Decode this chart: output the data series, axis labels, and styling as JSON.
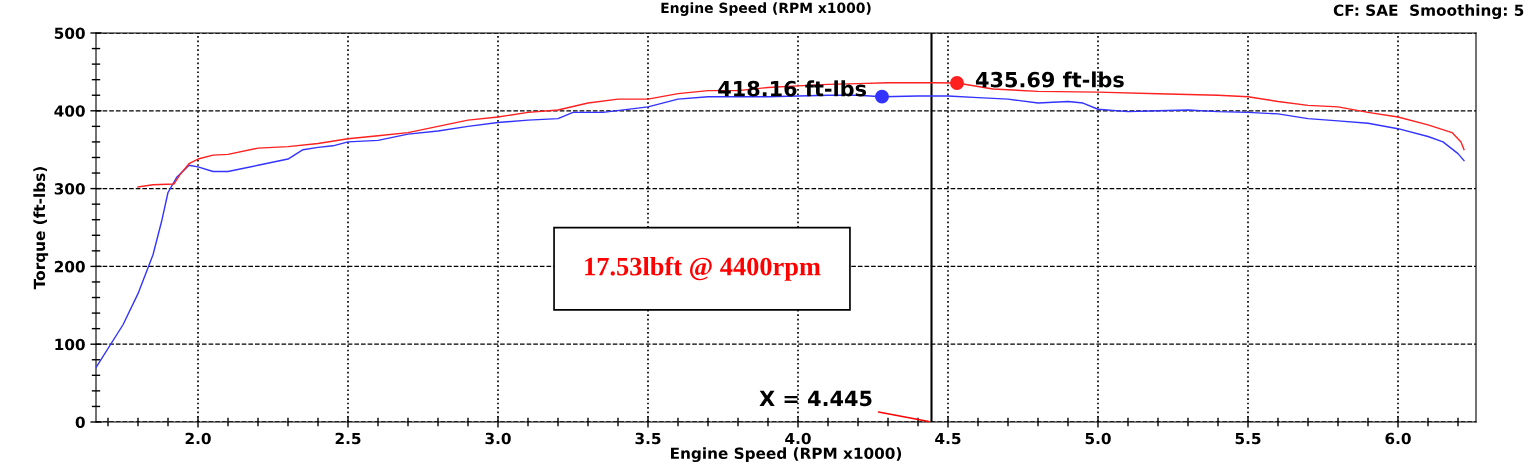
{
  "chart_data": {
    "type": "line",
    "title": "Engine Speed (RPM x1000)",
    "xlabel": "Engine Speed (RPM x1000)",
    "ylabel": "Torque (ft-lbs)",
    "xlim": [
      1.66,
      6.26
    ],
    "xticks": [
      {
        "value": 2.0,
        "label": "2.0"
      },
      {
        "value": 2.5,
        "label": "2.5"
      },
      {
        "value": 3.0,
        "label": "3.0"
      },
      {
        "value": 3.5,
        "label": "3.5"
      },
      {
        "value": 4.0,
        "label": "4.0"
      },
      {
        "value": 4.5,
        "label": "4.5"
      },
      {
        "value": 5.0,
        "label": "5.0"
      },
      {
        "value": 5.5,
        "label": "5.5"
      },
      {
        "value": 6.0,
        "label": "6.0"
      }
    ],
    "ylim": [
      0,
      500
    ],
    "yticks": [
      0,
      100,
      200,
      300,
      400,
      500
    ],
    "grid": true,
    "line_style": "solid",
    "marker": "none",
    "series": [
      {
        "color": "#3333ff",
        "x": [
          1.66,
          1.75,
          1.8,
          1.85,
          1.88,
          1.9,
          1.93,
          1.97,
          2.0,
          2.05,
          2.1,
          2.2,
          2.3,
          2.35,
          2.4,
          2.45,
          2.5,
          2.6,
          2.7,
          2.8,
          2.9,
          3.0,
          3.1,
          3.2,
          3.25,
          3.35,
          3.5,
          3.6,
          3.7,
          3.8,
          3.9,
          4.0,
          4.1,
          4.2,
          4.28,
          4.4,
          4.5,
          4.6,
          4.7,
          4.8,
          4.9,
          4.95,
          5.0,
          5.1,
          5.2,
          5.3,
          5.4,
          5.5,
          5.6,
          5.7,
          5.8,
          5.9,
          6.0,
          6.1,
          6.15,
          6.2,
          6.22
        ],
        "values": [
          70,
          125,
          165,
          215,
          260,
          295,
          315,
          330,
          328,
          322,
          322,
          330,
          338,
          350,
          353,
          355,
          360,
          362,
          370,
          374,
          380,
          385,
          388,
          390,
          398,
          398,
          405,
          415,
          418,
          418,
          418,
          419,
          420,
          420,
          418,
          419,
          419,
          417,
          415,
          410,
          412,
          410,
          402,
          399,
          400,
          401,
          399,
          398,
          396,
          390,
          387,
          384,
          377,
          367,
          360,
          345,
          336
        ]
      },
      {
        "color": "#ff2020",
        "x": [
          1.8,
          1.85,
          1.92,
          1.94,
          1.97,
          2.0,
          2.05,
          2.1,
          2.2,
          2.3,
          2.4,
          2.5,
          2.6,
          2.7,
          2.8,
          2.9,
          3.0,
          3.1,
          3.2,
          3.3,
          3.4,
          3.5,
          3.6,
          3.7,
          3.8,
          3.9,
          4.0,
          4.1,
          4.2,
          4.3,
          4.45,
          4.53,
          4.65,
          4.8,
          5.0,
          5.2,
          5.4,
          5.5,
          5.6,
          5.7,
          5.8,
          5.9,
          6.0,
          6.1,
          6.18,
          6.21,
          6.22
        ],
        "values": [
          302,
          305,
          306,
          318,
          332,
          338,
          343,
          344,
          352,
          354,
          358,
          364,
          368,
          372,
          380,
          388,
          392,
          398,
          401,
          410,
          415,
          415,
          422,
          426,
          426,
          430,
          432,
          434,
          435,
          436,
          436,
          435.69,
          428,
          425,
          424,
          422,
          420,
          418,
          412,
          407,
          405,
          398,
          392,
          382,
          372,
          360,
          350
        ]
      }
    ],
    "ref_lines": [
      {
        "axis": "x",
        "value": 4.445,
        "label": "X = 4.445",
        "color": "#000000"
      }
    ],
    "annotations": [
      {
        "text": "418.16 ft-lbs",
        "x": 4.28,
        "y": 418.16
      },
      {
        "text": "435.69 ft-lbs",
        "x": 4.53,
        "y": 435.69
      },
      "CF: SAE  Smoothing: 5",
      "17.53lbft @ 4400rpm"
    ]
  }
}
